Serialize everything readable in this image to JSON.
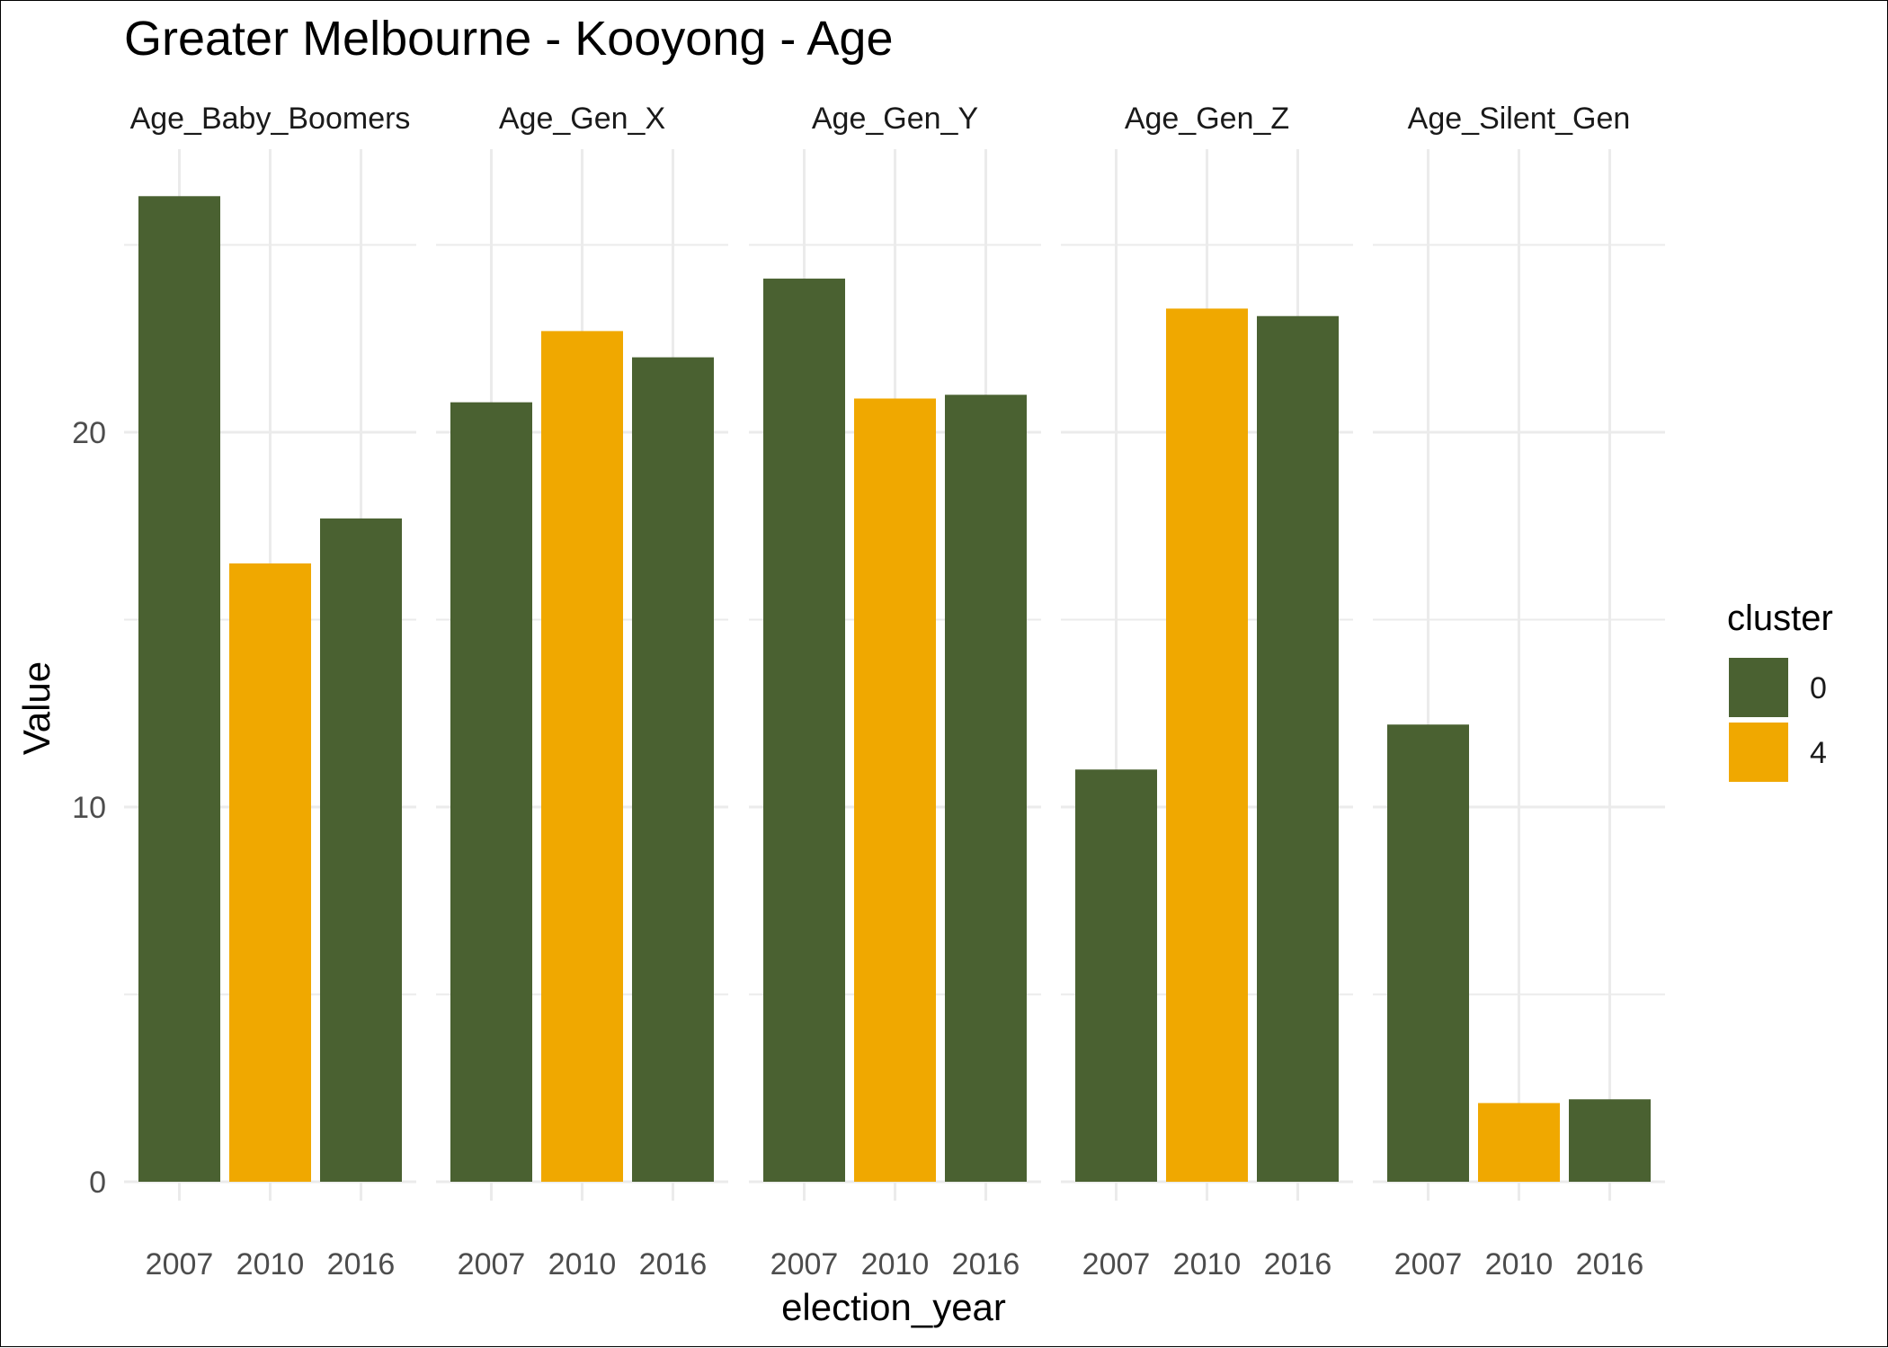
{
  "chart_data": {
    "type": "bar",
    "title": "Greater Melbourne - Kooyong - Age",
    "xlabel": "election_year",
    "ylabel": "Value",
    "ylim": [
      0,
      26.5
    ],
    "yticks": [
      0,
      10,
      20
    ],
    "grid": true,
    "legend": {
      "title": "cluster",
      "position": "right",
      "entries": [
        {
          "label": "0",
          "color": "#4a6131"
        },
        {
          "label": "4",
          "color": "#f0a800"
        }
      ]
    },
    "categories": [
      "2007",
      "2010",
      "2016"
    ],
    "facets": [
      {
        "label": "Age_Baby_Boomers",
        "values": [
          26.3,
          16.5,
          17.7
        ],
        "clusters": [
          "0",
          "4",
          "0"
        ]
      },
      {
        "label": "Age_Gen_X",
        "values": [
          20.8,
          22.7,
          22.0
        ],
        "clusters": [
          "0",
          "4",
          "0"
        ]
      },
      {
        "label": "Age_Gen_Y",
        "values": [
          24.1,
          20.9,
          21.0
        ],
        "clusters": [
          "0",
          "4",
          "0"
        ]
      },
      {
        "label": "Age_Gen_Z",
        "values": [
          11.0,
          23.3,
          23.1
        ],
        "clusters": [
          "0",
          "4",
          "0"
        ]
      },
      {
        "label": "Age_Silent_Gen",
        "values": [
          12.2,
          2.1,
          2.2
        ],
        "clusters": [
          "0",
          "4",
          "0"
        ]
      }
    ]
  }
}
